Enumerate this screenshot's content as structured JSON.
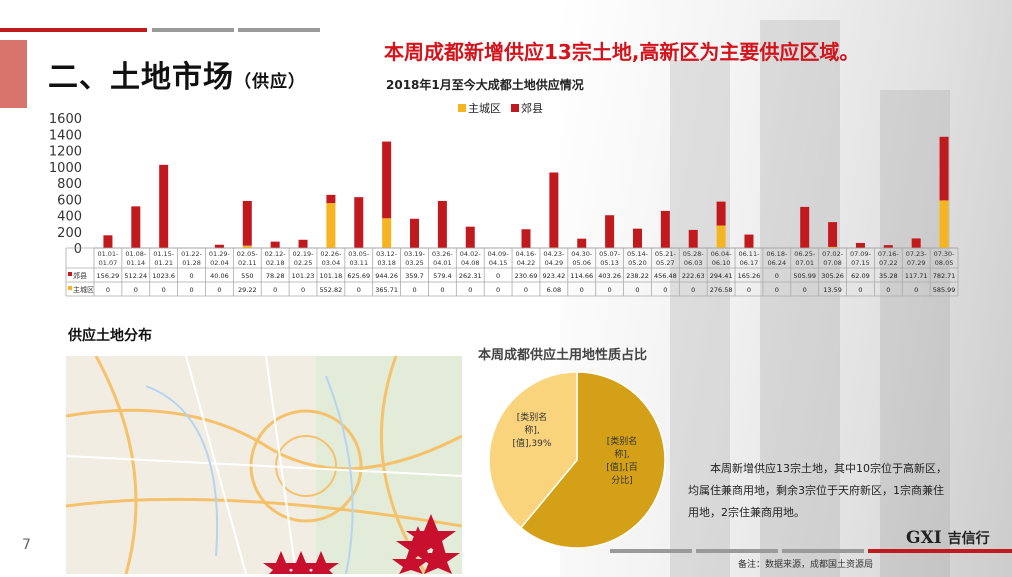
{
  "slide": {
    "title": "二、土地市场",
    "title_sub": "（供应）",
    "headline": "本周成都新增供应13宗土地,高新区为主要供应区域。",
    "page_number": "7",
    "map_section_label": "供应土地分布",
    "pie_title": "本周成都供应土用地性质占比",
    "description": "本周新增供应13宗土地，其中10宗位于高新区，均属住兼商用地，剩余3宗位于天府新区，1宗商兼住用地，2宗住兼商用地。",
    "logo_text": "GXI",
    "logo_cn": "吉信行",
    "footnote": "备注：数据来源，成都国土资源局",
    "colors": {
      "main_district": "#f5b521",
      "suburb": "#c0191e",
      "pie_major": "#d4a017",
      "pie_minor": "#fad37d",
      "accent_red": "#d2141c"
    }
  },
  "chart_data": [
    {
      "type": "bar",
      "title": "2018年1月至今大成都土地供应情况",
      "categories": [
        "01.01-01.07",
        "01.08-01.14",
        "01.15-01.21",
        "01.22-01.28",
        "01.29-02.04",
        "02.05-02.11",
        "02.12-02.18",
        "02.19-02.25",
        "02.26-03.04",
        "03.05-03.11",
        "03.12-03.18",
        "03.19-03.25",
        "03.26-04.01",
        "04.02-04.08",
        "04.09-04.15",
        "04.16-04.22",
        "04.23-04.29",
        "04.30-05.06",
        "05.07-05.13",
        "05.14-05.20",
        "05.21-05.27",
        "05.28-06.03",
        "06.04-06.10",
        "06.11-06.17",
        "06.18-06.24",
        "06.25-07.01",
        "07.02-07.08",
        "07.09-07.15",
        "07.16-07.22",
        "07.23-07.29",
        "07.30-08.05"
      ],
      "series": [
        {
          "name": "郊县",
          "values": [
            156.29,
            512.24,
            1023.6,
            0,
            40.06,
            550,
            78.28,
            101.23,
            101.18,
            625.69,
            944.26,
            359.7,
            579.4,
            262.31,
            0,
            230.69,
            923.42,
            114.66,
            403.26,
            238.22,
            456.48,
            222.63,
            294.41,
            165.26,
            0,
            505.99,
            305.26,
            62.09,
            35.28,
            117.71,
            782.71
          ]
        },
        {
          "name": "主城区",
          "values": [
            0,
            0,
            0,
            0,
            0,
            29.22,
            0,
            0,
            552.82,
            0,
            365.71,
            0,
            0,
            0,
            0,
            0,
            6.08,
            0,
            0,
            0,
            0,
            0,
            276.58,
            0,
            0,
            0,
            13.59,
            0,
            0,
            0,
            585.99
          ]
        }
      ],
      "legend_order": [
        "主城区",
        "郊县"
      ],
      "stacked": true,
      "yticks": [
        "0",
        "200",
        "400",
        "600",
        "800",
        "1000",
        "1200",
        "1400",
        "1600"
      ],
      "ylim": [
        0,
        1600
      ],
      "table_row_labels": [
        "郊县",
        "主城区"
      ],
      "table_values": [
        [
          "156.29",
          "512.24",
          "1023.6",
          "0",
          "40.06",
          "550",
          "78.28",
          "101.23",
          "101.18",
          "625.69",
          "944.26",
          "359.7",
          "579.4",
          "262.31",
          "0",
          "230.69",
          "923.42",
          "114.66",
          "403.26",
          "238.22",
          "456.48",
          "222.63",
          "294.41",
          "165.26",
          "0",
          "505.99",
          "305.26",
          "62.09",
          "35.28",
          "117.71",
          "782.71"
        ],
        [
          "0",
          "0",
          "0",
          "0",
          "0",
          "29.22",
          "0",
          "0",
          "552.82",
          "0",
          "365.71",
          "0",
          "0",
          "0",
          "0",
          "0",
          "6.08",
          "0",
          "0",
          "0",
          "0",
          "0",
          "276.58",
          "0",
          "0",
          "0",
          "13.59",
          "0",
          "0",
          "0",
          "585.99"
        ]
      ]
    },
    {
      "type": "pie",
      "slices": [
        {
          "label": "[类别名称],[值],39%",
          "value": 39,
          "lines": [
            "[类别名",
            "称],",
            "[值],39%"
          ]
        },
        {
          "label": "[类别名称],[值],[百分比]",
          "value": 61,
          "lines": [
            "[类别名",
            "称],",
            "[值],[百",
            "分比]"
          ]
        }
      ]
    }
  ]
}
